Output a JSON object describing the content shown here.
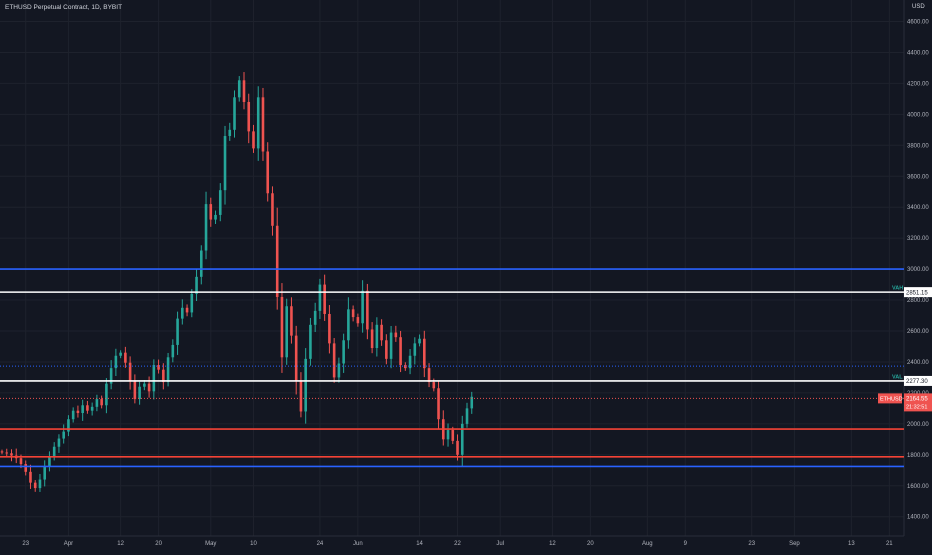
{
  "header": {
    "symbol_title": "ETHUSD Perpetual Contract, 1D, BYBIT",
    "currency": "USD"
  },
  "colors": {
    "background": "#131722",
    "up": "#26a69a",
    "down": "#ef5350",
    "grid": "#1e222d",
    "text": "#b2b5be",
    "blue_line": "#2962ff",
    "white_line": "#ffffff",
    "red_line": "#f44336"
  },
  "chart_data": {
    "type": "candlestick",
    "title": "ETHUSD Perpetual Contract, 1D, BYBIT",
    "y_axis": {
      "ticks": [
        1400,
        1600,
        1800,
        2000,
        2200,
        2400,
        2600,
        2800,
        3000,
        3200,
        3400,
        3600,
        3800,
        4000,
        4200,
        4400,
        4600
      ],
      "tick_labels": [
        "1400.00",
        "1600.00",
        "1800.00",
        "2000.00",
        "2200.00",
        "2400.00",
        "2600.00",
        "2800.00",
        "3000.00",
        "3200.00",
        "3400.00",
        "3600.00",
        "3800.00",
        "4000.00",
        "4200.00",
        "4400.00",
        "4600.00"
      ],
      "ylim": [
        1300,
        4750
      ]
    },
    "x_axis": {
      "start_date": "2021-03-18",
      "labels": [
        {
          "label": "23",
          "date": "2021-03-23"
        },
        {
          "label": "Apr",
          "date": "2021-04-01"
        },
        {
          "label": "12",
          "date": "2021-04-12"
        },
        {
          "label": "20",
          "date": "2021-04-20"
        },
        {
          "label": "May",
          "date": "2021-05-01"
        },
        {
          "label": "10",
          "date": "2021-05-10"
        },
        {
          "label": "24",
          "date": "2021-05-24"
        },
        {
          "label": "Jun",
          "date": "2021-06-01"
        },
        {
          "label": "14",
          "date": "2021-06-14"
        },
        {
          "label": "22",
          "date": "2021-06-22"
        },
        {
          "label": "Jul",
          "date": "2021-07-01"
        },
        {
          "label": "12",
          "date": "2021-07-12"
        },
        {
          "label": "20",
          "date": "2021-07-20"
        },
        {
          "label": "Aug",
          "date": "2021-08-01"
        },
        {
          "label": "9",
          "date": "2021-08-09"
        },
        {
          "label": "23",
          "date": "2021-08-23"
        },
        {
          "label": "Sep",
          "date": "2021-09-01"
        },
        {
          "label": "13",
          "date": "2021-09-13"
        },
        {
          "label": "21",
          "date": "2021-09-21"
        },
        {
          "label": "Oct",
          "date": "2021-10-01"
        }
      ]
    },
    "close": [
      1815,
      1810,
      1795,
      1778,
      1740,
      1690,
      1620,
      1585,
      1640,
      1725,
      1790,
      1852,
      1905,
      1950,
      2030,
      2085,
      2070,
      2120,
      2085,
      2110,
      2160,
      2120,
      2260,
      2360,
      2440,
      2460,
      2395,
      2280,
      2160,
      2240,
      2260,
      2210,
      2380,
      2350,
      2270,
      2430,
      2510,
      2680,
      2750,
      2720,
      2840,
      2950,
      3120,
      3420,
      3320,
      3350,
      3510,
      3860,
      3900,
      4110,
      4220,
      4080,
      3890,
      3780,
      4110,
      3760,
      3490,
      3280,
      2820,
      2430,
      2760,
      2570,
      2280,
      2080,
      2420,
      2640,
      2730,
      2900,
      2710,
      2520,
      2300,
      2390,
      2540,
      2740,
      2690,
      2650,
      2860,
      2610,
      2490,
      2640,
      2540,
      2420,
      2590,
      2560,
      2380,
      2360,
      2440,
      2520,
      2550,
      2360,
      2270,
      2230,
      2030,
      1900,
      1960,
      1890,
      1800,
      2000,
      2100,
      2175
    ],
    "first_open": 1822,
    "annotations": [
      {
        "label": "VAH",
        "value": "2851.15"
      },
      {
        "label": "VAL",
        "value": "2277.30"
      },
      {
        "label": "ETHUSD",
        "value": "2164.55",
        "sub": "21:32:51"
      }
    ],
    "horizontal_lines": [
      {
        "price": 3000,
        "color": "#2962ff",
        "style": "solid"
      },
      {
        "price": 2851.15,
        "color": "#ffffff",
        "style": "solid"
      },
      {
        "price": 2373,
        "color": "#2962ff",
        "style": "dotted"
      },
      {
        "price": 2277.3,
        "color": "#ffffff",
        "style": "solid"
      },
      {
        "price": 2164.55,
        "color": "#ef5350",
        "style": "dotted"
      },
      {
        "price": 1966,
        "color": "#f44336",
        "style": "solid"
      },
      {
        "price": 1787,
        "color": "#f44336",
        "style": "solid"
      },
      {
        "price": 1725,
        "color": "#2962ff",
        "style": "solid"
      }
    ],
    "grid": true,
    "legend": "none"
  }
}
